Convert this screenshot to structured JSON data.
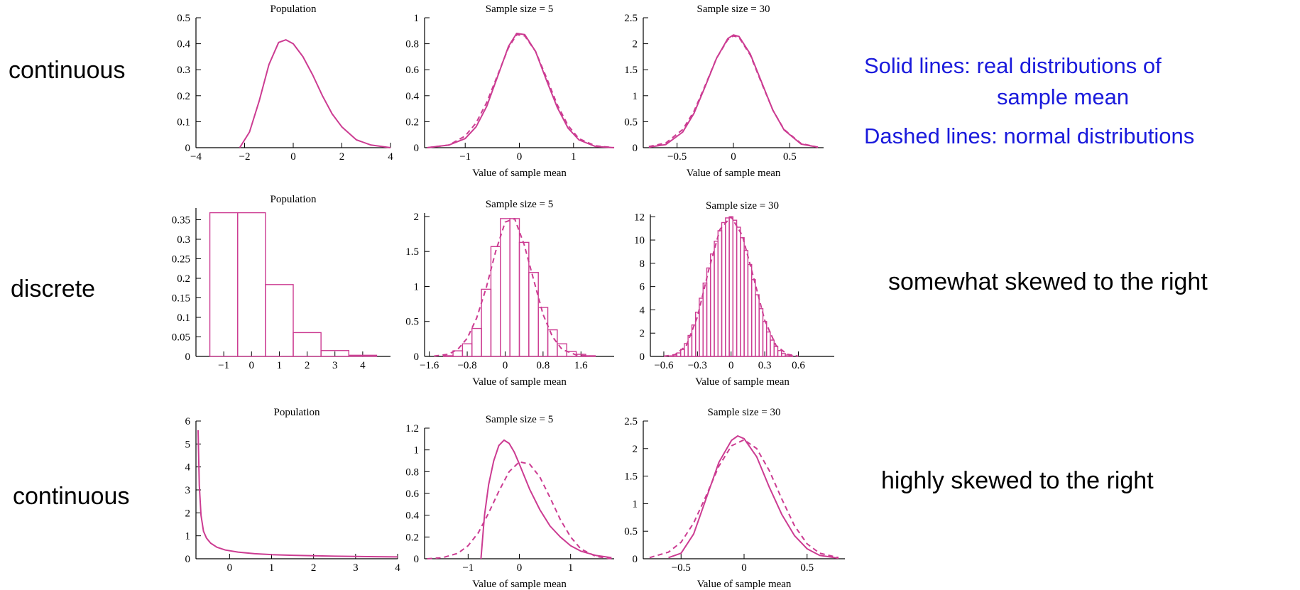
{
  "row_labels": [
    "continuous",
    "discrete",
    "continuous"
  ],
  "notes": {
    "solid_line1": "Solid lines: real distributions of",
    "solid_line2": "sample mean",
    "dashed": "Dashed lines: normal distributions"
  },
  "descriptions": {
    "row2": "somewhat skewed to the right",
    "row3": "highly skewed to the right"
  },
  "colors": {
    "curve": "#cc3c92",
    "axis": "#000000"
  },
  "chart_data": [
    {
      "type": "line",
      "title": "Population",
      "xlabel": "",
      "xlim": [
        -4,
        4
      ],
      "ylim": [
        0,
        0.5
      ],
      "xticks": [
        -4,
        -2,
        0,
        2,
        4
      ],
      "yticks": [
        0,
        0.1,
        0.2,
        0.3,
        0.4,
        0.5
      ],
      "yticklabels": [
        "0",
        "0.1",
        "0.2",
        "0.3",
        "0.4",
        "0.5"
      ],
      "series": [
        {
          "style": "solid",
          "x": [
            -2.2,
            -1.8,
            -1.4,
            -1.0,
            -0.6,
            -0.3,
            0.0,
            0.4,
            0.8,
            1.2,
            1.6,
            2.0,
            2.6,
            3.2,
            4.0
          ],
          "y": [
            0,
            0.06,
            0.18,
            0.32,
            0.405,
            0.415,
            0.4,
            0.35,
            0.28,
            0.2,
            0.13,
            0.08,
            0.03,
            0.01,
            0
          ]
        }
      ]
    },
    {
      "type": "line",
      "title": "Sample size = 5",
      "xlabel": "Value of sample mean",
      "xlim": [
        -1.75,
        1.75
      ],
      "ylim": [
        0,
        1
      ],
      "xticks": [
        -1,
        0,
        1
      ],
      "yticks": [
        0,
        0.2,
        0.4,
        0.6,
        0.8,
        1
      ],
      "yticklabels": [
        "0",
        "0.2",
        "0.4",
        "0.6",
        "0.8",
        "1"
      ],
      "series": [
        {
          "style": "solid",
          "x": [
            -1.7,
            -1.3,
            -1.0,
            -0.8,
            -0.6,
            -0.4,
            -0.2,
            -0.05,
            0.1,
            0.3,
            0.5,
            0.7,
            0.9,
            1.1,
            1.4,
            1.75
          ],
          "y": [
            0.0,
            0.02,
            0.07,
            0.16,
            0.32,
            0.55,
            0.78,
            0.88,
            0.87,
            0.74,
            0.52,
            0.31,
            0.15,
            0.06,
            0.01,
            0.0
          ]
        },
        {
          "style": "dashed",
          "x": [
            -1.7,
            -1.3,
            -1.0,
            -0.8,
            -0.6,
            -0.4,
            -0.2,
            -0.05,
            0.1,
            0.3,
            0.5,
            0.7,
            0.9,
            1.1,
            1.4,
            1.75
          ],
          "y": [
            0.0,
            0.02,
            0.09,
            0.19,
            0.35,
            0.56,
            0.77,
            0.87,
            0.86,
            0.74,
            0.54,
            0.33,
            0.17,
            0.07,
            0.015,
            0.0
          ]
        }
      ]
    },
    {
      "type": "line",
      "title": "Sample size = 30",
      "xlabel": "Value of sample mean",
      "xlim": [
        -0.8,
        0.8
      ],
      "ylim": [
        0,
        2.5
      ],
      "xticks": [
        -0.5,
        0,
        0.5
      ],
      "yticks": [
        0,
        0.5,
        1,
        1.5,
        2,
        2.5
      ],
      "yticklabels": [
        "0",
        "0.5",
        "1",
        "1.5",
        "2",
        "2.5"
      ],
      "series": [
        {
          "style": "solid",
          "x": [
            -0.75,
            -0.6,
            -0.45,
            -0.35,
            -0.25,
            -0.15,
            -0.05,
            0.0,
            0.05,
            0.15,
            0.25,
            0.35,
            0.45,
            0.6,
            0.75
          ],
          "y": [
            0.01,
            0.06,
            0.3,
            0.66,
            1.18,
            1.72,
            2.1,
            2.17,
            2.14,
            1.8,
            1.26,
            0.72,
            0.34,
            0.07,
            0.01
          ]
        },
        {
          "style": "dashed",
          "x": [
            -0.75,
            -0.6,
            -0.45,
            -0.35,
            -0.25,
            -0.15,
            -0.05,
            0.0,
            0.05,
            0.15,
            0.25,
            0.35,
            0.45,
            0.6,
            0.75
          ],
          "y": [
            0.02,
            0.09,
            0.35,
            0.7,
            1.2,
            1.72,
            2.08,
            2.15,
            2.12,
            1.78,
            1.24,
            0.72,
            0.35,
            0.08,
            0.01
          ]
        }
      ]
    },
    {
      "type": "bar",
      "title": "Population",
      "xlabel": "",
      "xlim": [
        -2,
        5
      ],
      "ylim": [
        0,
        0.38
      ],
      "xticks": [
        -1,
        0,
        1,
        2,
        3,
        4
      ],
      "yticks": [
        0,
        0.05,
        0.1,
        0.15,
        0.2,
        0.25,
        0.3,
        0.35
      ],
      "yticklabels": [
        "0",
        "0.05",
        "0.1",
        "0.15",
        "0.2",
        "0.25",
        "0.3",
        "0.35"
      ],
      "bars": [
        {
          "x": -1,
          "value": 0.368
        },
        {
          "x": 0,
          "value": 0.368
        },
        {
          "x": 1,
          "value": 0.184
        },
        {
          "x": 2,
          "value": 0.061
        },
        {
          "x": 3,
          "value": 0.015
        },
        {
          "x": 4,
          "value": 0.003
        }
      ],
      "bar_width": 1,
      "bar_offset": -0.5
    },
    {
      "type": "bar",
      "title": "Sample size = 5",
      "xlabel": "Value of sample mean",
      "xlim": [
        -1.7,
        2.3
      ],
      "ylim": [
        0,
        2.05
      ],
      "xticks": [
        -1.6,
        -0.8,
        0,
        0.8,
        1.6
      ],
      "yticks": [
        0,
        0.5,
        1,
        1.5,
        2
      ],
      "yticklabels": [
        "0",
        "0.5",
        "1",
        "1.5",
        "2"
      ],
      "bar_width": 0.2,
      "bar_offset": -0.1,
      "bars": [
        {
          "x": -1.2,
          "value": 0.01
        },
        {
          "x": -1.0,
          "value": 0.08
        },
        {
          "x": -0.8,
          "value": 0.18
        },
        {
          "x": -0.6,
          "value": 0.4
        },
        {
          "x": -0.4,
          "value": 0.96
        },
        {
          "x": -0.2,
          "value": 1.57
        },
        {
          "x": 0.0,
          "value": 1.97
        },
        {
          "x": 0.2,
          "value": 1.97
        },
        {
          "x": 0.4,
          "value": 1.63
        },
        {
          "x": 0.6,
          "value": 1.2
        },
        {
          "x": 0.8,
          "value": 0.7
        },
        {
          "x": 1.0,
          "value": 0.38
        },
        {
          "x": 1.2,
          "value": 0.18
        },
        {
          "x": 1.4,
          "value": 0.07
        },
        {
          "x": 1.6,
          "value": 0.03
        },
        {
          "x": 1.8,
          "value": 0.01
        }
      ],
      "series": [
        {
          "style": "dashed",
          "x": [
            -1.5,
            -1.2,
            -1.0,
            -0.8,
            -0.6,
            -0.4,
            -0.2,
            0.0,
            0.2,
            0.4,
            0.6,
            0.8,
            1.0,
            1.2,
            1.5,
            1.8
          ],
          "y": [
            0.005,
            0.03,
            0.1,
            0.26,
            0.55,
            0.98,
            1.5,
            1.92,
            1.97,
            1.6,
            1.1,
            0.6,
            0.28,
            0.1,
            0.02,
            0.005
          ]
        }
      ]
    },
    {
      "type": "bar",
      "title": "Sample size = 30",
      "xlabel": "Value of sample mean",
      "xlim": [
        -0.72,
        0.92
      ],
      "ylim": [
        0,
        12.2
      ],
      "xticks": [
        -0.6,
        -0.3,
        0,
        0.3,
        0.6
      ],
      "xticklabels": [
        "−0.6",
        "−0.3",
        "0",
        "0.3",
        "0.6"
      ],
      "yticks": [
        0,
        2,
        4,
        6,
        8,
        10,
        12
      ],
      "yticklabels": [
        "0",
        "2",
        "4",
        "6",
        "8",
        "10",
        "12"
      ],
      "bar_width": 0.0333,
      "bar_offset": -0.01667,
      "bars": [
        {
          "x": -0.533,
          "value": 0.05
        },
        {
          "x": -0.5,
          "value": 0.12
        },
        {
          "x": -0.467,
          "value": 0.3
        },
        {
          "x": -0.433,
          "value": 0.6
        },
        {
          "x": -0.4,
          "value": 1.1
        },
        {
          "x": -0.367,
          "value": 1.8
        },
        {
          "x": -0.333,
          "value": 2.7
        },
        {
          "x": -0.3,
          "value": 3.8
        },
        {
          "x": -0.267,
          "value": 5.0
        },
        {
          "x": -0.233,
          "value": 6.3
        },
        {
          "x": -0.2,
          "value": 7.6
        },
        {
          "x": -0.167,
          "value": 8.8
        },
        {
          "x": -0.133,
          "value": 9.9
        },
        {
          "x": -0.1,
          "value": 10.8
        },
        {
          "x": -0.067,
          "value": 11.5
        },
        {
          "x": -0.033,
          "value": 11.9
        },
        {
          "x": 0.0,
          "value": 12.0
        },
        {
          "x": 0.033,
          "value": 11.7
        },
        {
          "x": 0.067,
          "value": 11.1
        },
        {
          "x": 0.1,
          "value": 10.2
        },
        {
          "x": 0.133,
          "value": 9.1
        },
        {
          "x": 0.167,
          "value": 7.9
        },
        {
          "x": 0.2,
          "value": 6.6
        },
        {
          "x": 0.233,
          "value": 5.3
        },
        {
          "x": 0.267,
          "value": 4.1
        },
        {
          "x": 0.3,
          "value": 3.0
        },
        {
          "x": 0.333,
          "value": 2.1
        },
        {
          "x": 0.367,
          "value": 1.4
        },
        {
          "x": 0.4,
          "value": 0.85
        },
        {
          "x": 0.433,
          "value": 0.5
        },
        {
          "x": 0.467,
          "value": 0.25
        },
        {
          "x": 0.5,
          "value": 0.12
        },
        {
          "x": 0.533,
          "value": 0.05
        }
      ],
      "series": [
        {
          "style": "dashed",
          "x": [
            -0.6,
            -0.5,
            -0.4,
            -0.3,
            -0.2,
            -0.1,
            0.0,
            0.1,
            0.2,
            0.3,
            0.4,
            0.5,
            0.6
          ],
          "y": [
            0.02,
            0.15,
            0.9,
            3.4,
            7.4,
            10.9,
            12.0,
            10.4,
            6.8,
            3.1,
            0.95,
            0.18,
            0.02
          ]
        }
      ]
    },
    {
      "type": "line",
      "title": "Population",
      "xlabel": "",
      "xlim": [
        -0.8,
        4
      ],
      "ylim": [
        0,
        6
      ],
      "xticks": [
        0,
        1,
        2,
        3,
        4
      ],
      "yticks": [
        0,
        1,
        2,
        3,
        4,
        5,
        6
      ],
      "yticklabels": [
        "0",
        "1",
        "2",
        "3",
        "4",
        "5",
        "6"
      ],
      "series": [
        {
          "style": "solid",
          "x": [
            -0.75,
            -0.72,
            -0.68,
            -0.62,
            -0.55,
            -0.45,
            -0.3,
            -0.1,
            0.2,
            0.6,
            1.0,
            1.5,
            2.0,
            2.5,
            3.0,
            3.5,
            4.0
          ],
          "y": [
            5.6,
            3.2,
            1.9,
            1.2,
            0.9,
            0.68,
            0.5,
            0.38,
            0.29,
            0.22,
            0.18,
            0.15,
            0.13,
            0.11,
            0.1,
            0.09,
            0.08
          ]
        }
      ]
    },
    {
      "type": "line",
      "title": "Sample size = 5",
      "xlabel": "Value of sample mean",
      "xlim": [
        -1.85,
        1.85
      ],
      "ylim": [
        0,
        1.2
      ],
      "xticks": [
        -1,
        0,
        1
      ],
      "yticks": [
        0,
        0.2,
        0.4,
        0.6,
        0.8,
        1,
        1.2
      ],
      "yticklabels": [
        "0",
        "0.2",
        "0.4",
        "0.6",
        "0.8",
        "1",
        "1.2"
      ],
      "series": [
        {
          "style": "solid",
          "x": [
            -0.75,
            -0.68,
            -0.6,
            -0.5,
            -0.4,
            -0.3,
            -0.2,
            -0.1,
            0.0,
            0.2,
            0.4,
            0.6,
            0.8,
            1.0,
            1.2,
            1.5,
            1.8
          ],
          "y": [
            0.0,
            0.4,
            0.68,
            0.9,
            1.04,
            1.09,
            1.06,
            0.98,
            0.87,
            0.64,
            0.45,
            0.3,
            0.2,
            0.12,
            0.07,
            0.03,
            0.01
          ]
        },
        {
          "style": "dashed",
          "x": [
            -1.8,
            -1.5,
            -1.2,
            -1.0,
            -0.8,
            -0.6,
            -0.4,
            -0.2,
            0.0,
            0.2,
            0.4,
            0.6,
            0.8,
            1.0,
            1.2,
            1.5,
            1.8
          ],
          "y": [
            0.0,
            0.01,
            0.05,
            0.12,
            0.24,
            0.42,
            0.62,
            0.8,
            0.89,
            0.87,
            0.75,
            0.56,
            0.36,
            0.2,
            0.09,
            0.02,
            0.0
          ]
        }
      ]
    },
    {
      "type": "line",
      "title": "Sample size = 30",
      "xlabel": "Value of sample mean",
      "xlim": [
        -0.8,
        0.8
      ],
      "ylim": [
        0,
        2.5
      ],
      "xticks": [
        -0.5,
        0,
        0.5
      ],
      "xticklabels": [
        "−0.5",
        "0",
        "0.5"
      ],
      "yticks": [
        0,
        0.5,
        1,
        1.5,
        2,
        2.5
      ],
      "yticklabels": [
        "0",
        "0.5",
        "1",
        "1.5",
        "2",
        "2.5"
      ],
      "series": [
        {
          "style": "solid",
          "x": [
            -0.6,
            -0.5,
            -0.4,
            -0.3,
            -0.2,
            -0.1,
            -0.05,
            0.0,
            0.1,
            0.2,
            0.3,
            0.4,
            0.5,
            0.6,
            0.75
          ],
          "y": [
            0.02,
            0.1,
            0.45,
            1.1,
            1.75,
            2.15,
            2.23,
            2.18,
            1.85,
            1.3,
            0.8,
            0.42,
            0.18,
            0.06,
            0.01
          ]
        },
        {
          "style": "dashed",
          "x": [
            -0.75,
            -0.6,
            -0.5,
            -0.4,
            -0.3,
            -0.2,
            -0.1,
            0.0,
            0.1,
            0.2,
            0.3,
            0.4,
            0.5,
            0.6,
            0.75
          ],
          "y": [
            0.02,
            0.12,
            0.3,
            0.65,
            1.15,
            1.68,
            2.05,
            2.16,
            2.0,
            1.6,
            1.08,
            0.6,
            0.27,
            0.1,
            0.02
          ]
        }
      ]
    }
  ]
}
